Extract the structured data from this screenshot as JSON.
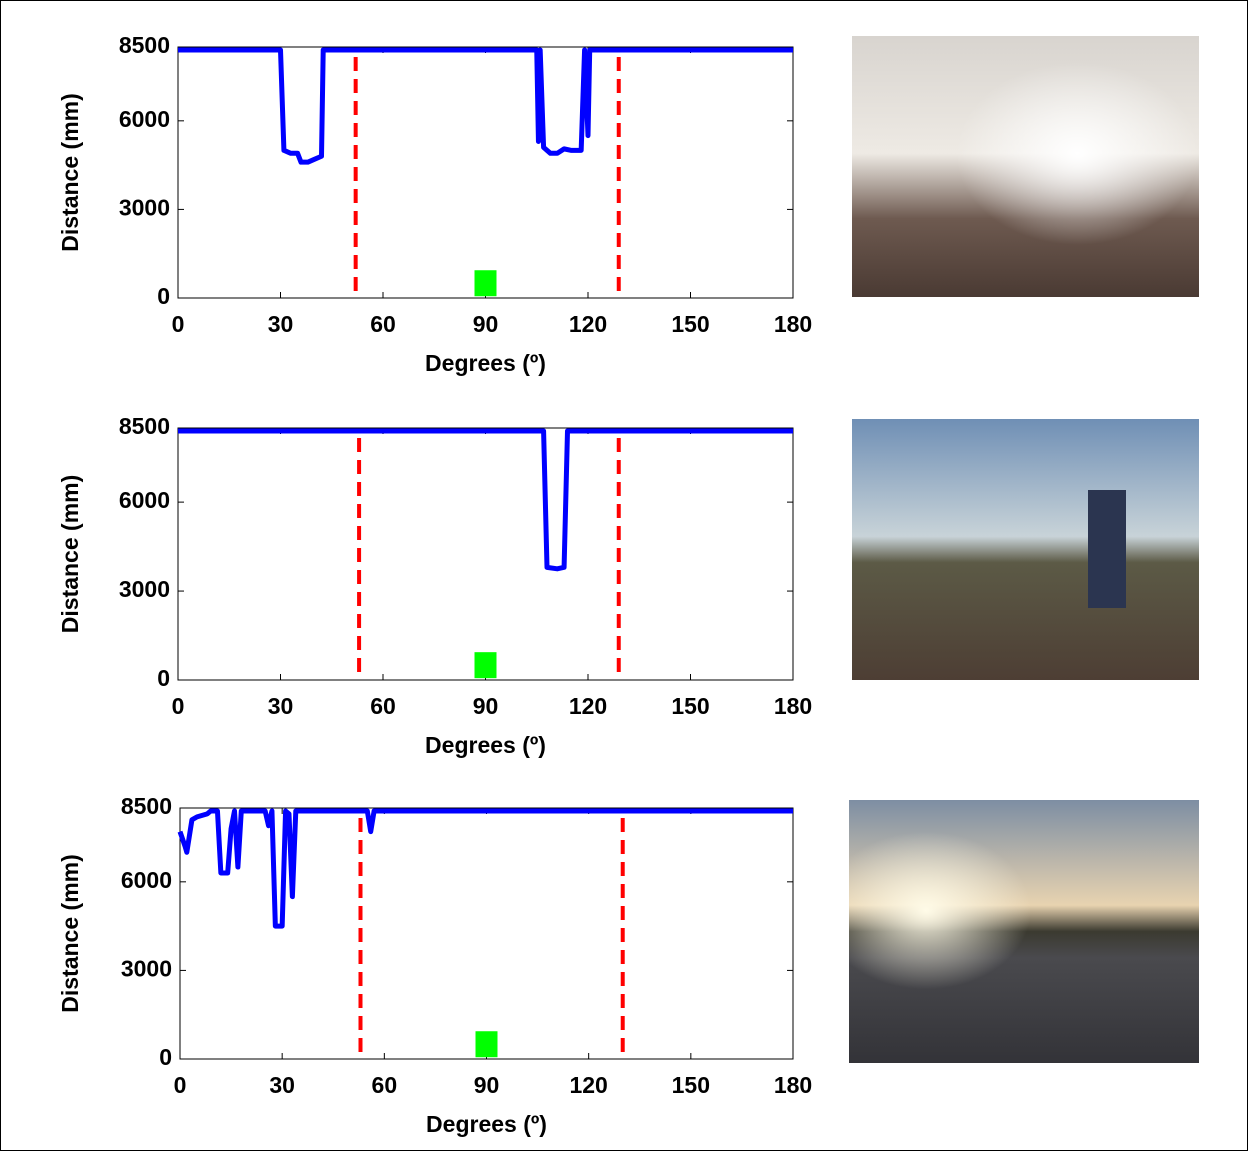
{
  "chart_data": [
    {
      "type": "line",
      "xlabel": "Degrees (º)",
      "ylabel": "Distance (mm)",
      "xlim": [
        0,
        180
      ],
      "xticks": [
        0,
        30,
        60,
        90,
        120,
        150,
        180
      ],
      "ylim": [
        0,
        8500
      ],
      "yticks": [
        0,
        3000,
        6000,
        8500
      ],
      "x": [
        0,
        30,
        31,
        33,
        35,
        36,
        38,
        40,
        42,
        42.5,
        105,
        105.5,
        106,
        107,
        109,
        111,
        113,
        115,
        118,
        119,
        120,
        120.5,
        180
      ],
      "series": [
        {
          "color": "#0000ff",
          "values": [
            8400,
            8400,
            5000,
            4900,
            4900,
            4600,
            4600,
            4700,
            4800,
            8400,
            8400,
            5300,
            8400,
            5100,
            4900,
            4900,
            5050,
            5000,
            5000,
            8400,
            5500,
            8400,
            8400
          ]
        }
      ],
      "vlines": {
        "color": "#ff0000",
        "values": [
          52,
          129
        ]
      },
      "target": {
        "color": "#00ff00",
        "x": 90,
        "y": 500
      }
    },
    {
      "type": "line",
      "xlabel": "Degrees (º)",
      "ylabel": "Distance (mm)",
      "xlim": [
        0,
        180
      ],
      "xticks": [
        0,
        30,
        60,
        90,
        120,
        150,
        180
      ],
      "ylim": [
        0,
        8500
      ],
      "yticks": [
        0,
        3000,
        6000,
        8500
      ],
      "x": [
        0,
        107,
        108,
        111,
        113,
        114,
        180
      ],
      "series": [
        {
          "color": "#0000ff",
          "values": [
            8400,
            8400,
            3800,
            3750,
            3800,
            8400,
            8400
          ]
        }
      ],
      "vlines": {
        "color": "#ff0000",
        "values": [
          53,
          129
        ]
      },
      "target": {
        "color": "#00ff00",
        "x": 90,
        "y": 500
      }
    },
    {
      "type": "line",
      "xlabel": "Degrees (º)",
      "ylabel": "Distance (mm)",
      "xlim": [
        0,
        180
      ],
      "xticks": [
        0,
        30,
        60,
        90,
        120,
        150,
        180
      ],
      "ylim": [
        0,
        8500
      ],
      "yticks": [
        0,
        3000,
        6000,
        8500
      ],
      "x": [
        0,
        1.5,
        2,
        3.5,
        5,
        8,
        9,
        11,
        12,
        14,
        15,
        16,
        17,
        18,
        25,
        26,
        27,
        28,
        30,
        31,
        32,
        33,
        34,
        55,
        56,
        57,
        180
      ],
      "series": [
        {
          "color": "#0000ff",
          "values": [
            7700,
            7200,
            7000,
            8100,
            8200,
            8300,
            8400,
            8400,
            6300,
            6300,
            7800,
            8400,
            6500,
            8400,
            8400,
            7900,
            8400,
            4500,
            4500,
            8400,
            8300,
            5500,
            8400,
            8400,
            7700,
            8400,
            8400
          ]
        }
      ],
      "vlines": {
        "color": "#ff0000",
        "values": [
          53,
          130
        ]
      },
      "target": {
        "color": "#00ff00",
        "x": 90,
        "y": 500
      }
    }
  ]
}
